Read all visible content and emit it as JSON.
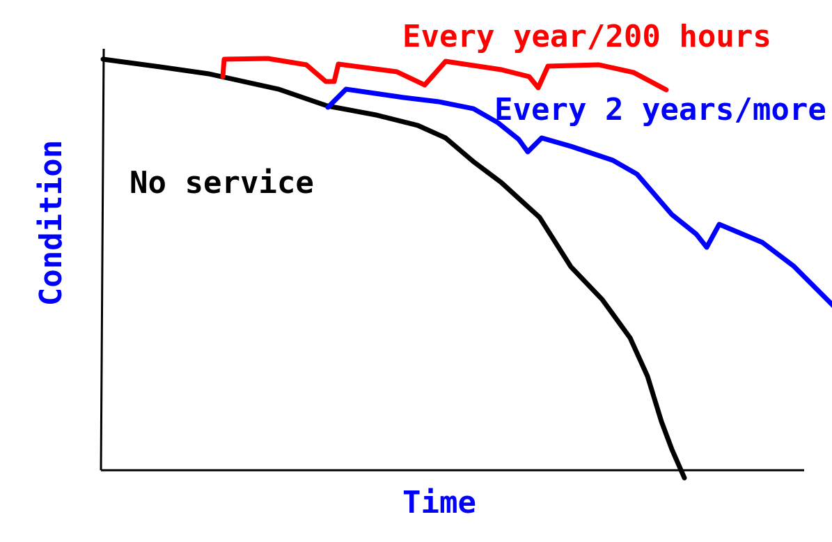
{
  "labels": {
    "yearly": "Every year/200 hours",
    "biennial": "Every 2 years/more",
    "none": "No service"
  },
  "axes": {
    "y_title": "Condition",
    "x_title": "Time"
  }
}
